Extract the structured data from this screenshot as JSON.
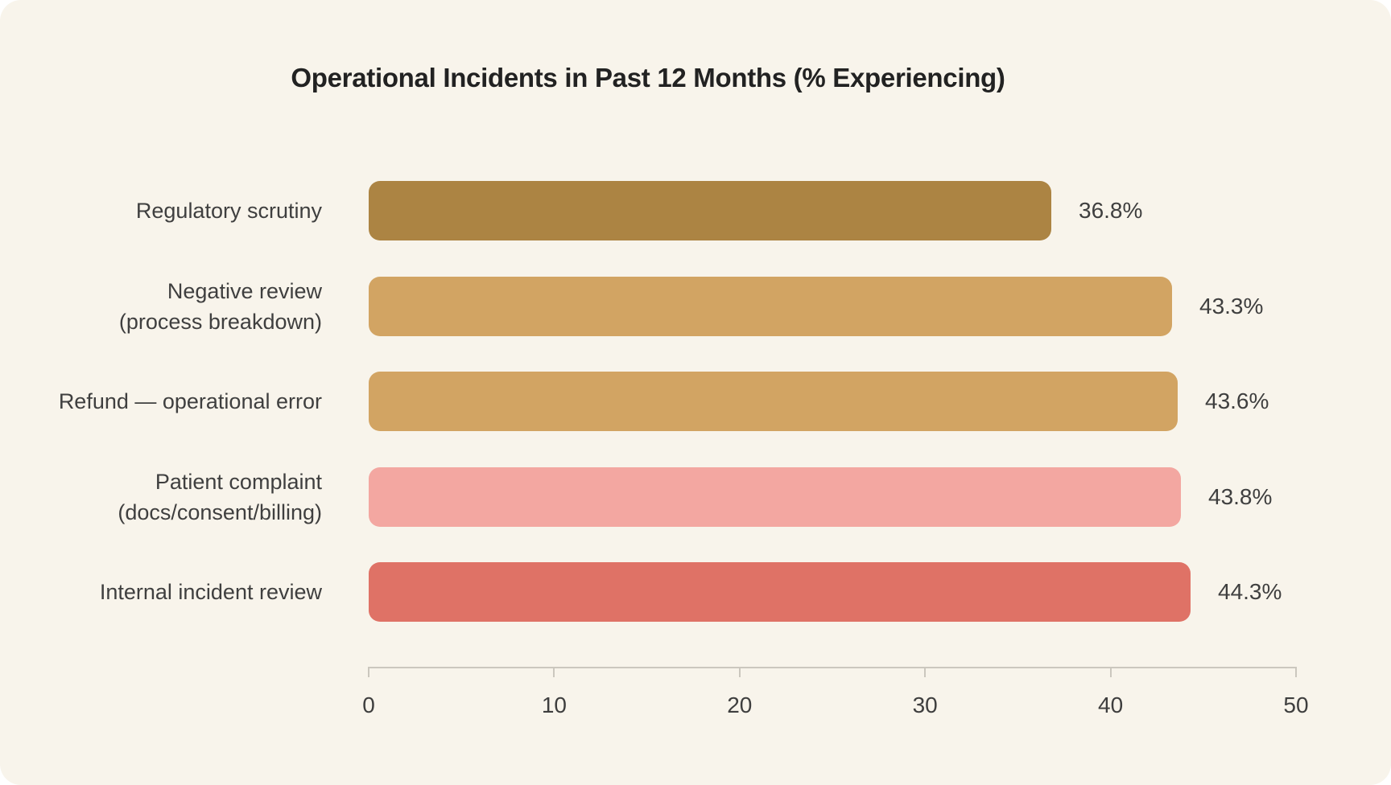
{
  "chart_data": {
    "type": "bar",
    "orientation": "horizontal",
    "title": "Operational Incidents in Past 12 Months (% Experiencing)",
    "categories": [
      "Regulatory scrutiny",
      "Negative review\n(process breakdown)",
      "Refund — operational error",
      "Patient complaint\n(docs/consent/billing)",
      "Internal incident review"
    ],
    "values": [
      36.8,
      43.3,
      43.6,
      43.8,
      44.3
    ],
    "value_labels": [
      "36.8%",
      "43.3%",
      "43.6%",
      "43.8%",
      "44.3%"
    ],
    "bar_colors": [
      "#AC8443",
      "#D2A463",
      "#D2A463",
      "#F3A7A1",
      "#DF7266"
    ],
    "xlabel": "",
    "ylabel": "",
    "xlim": [
      0,
      50
    ],
    "x_ticks": [
      "0",
      "10",
      "20",
      "30",
      "40",
      "50"
    ],
    "grid": false,
    "legend": false
  },
  "colors": {
    "page_background": "#FFFFFF",
    "card_background": "#F8F4EB",
    "title_text": "#222222",
    "label_text": "#3F3F3F",
    "axis_line": "#CBC7BE"
  }
}
